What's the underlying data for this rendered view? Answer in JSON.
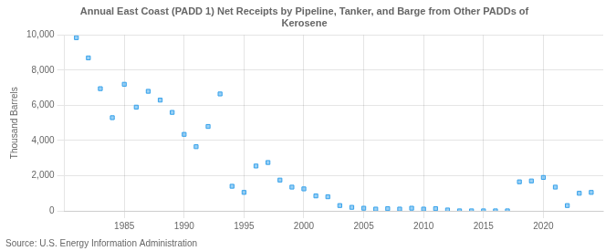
{
  "chart_data": {
    "type": "scatter",
    "title": "Annual East Coast (PADD 1) Net Receipts by Pipeline, Tanker, and Barge from Other PADDs of\nKerosene",
    "y_label": "Thousand Barrels",
    "annotations": [
      "Source: U.S. Energy Information Administration"
    ],
    "marker": "square",
    "x": [
      1981,
      1982,
      1983,
      1984,
      1985,
      1986,
      1987,
      1988,
      1989,
      1990,
      1991,
      1992,
      1993,
      1994,
      1995,
      1996,
      1997,
      1998,
      1999,
      2000,
      2001,
      2002,
      2003,
      2004,
      2005,
      2006,
      2007,
      2008,
      2009,
      2010,
      2011,
      2012,
      2013,
      2014,
      2015,
      2016,
      2017,
      2018,
      2019,
      2020,
      2021,
      2022,
      2023,
      2024
    ],
    "values": [
      9850,
      8700,
      6950,
      5300,
      7200,
      5900,
      6800,
      6300,
      5600,
      4350,
      3650,
      4800,
      6650,
      1400,
      1050,
      2550,
      2750,
      1750,
      1350,
      1250,
      850,
      800,
      300,
      200,
      150,
      100,
      125,
      100,
      150,
      100,
      125,
      50,
      0,
      0,
      0,
      0,
      0,
      1650,
      1700,
      1900,
      1350,
      300,
      1000,
      1050
    ],
    "xlim": [
      1980,
      2025
    ],
    "xticks": [
      1985,
      1990,
      1995,
      2000,
      2005,
      2010,
      2015,
      2020
    ],
    "ylim": [
      0,
      10000
    ],
    "yticks": [
      0,
      {
        "value": 2000,
        "label": "2,000"
      },
      {
        "value": 4000,
        "label": "4,000"
      },
      {
        "value": 6000,
        "label": "6,000"
      },
      {
        "value": 8000,
        "label": "8,000"
      },
      {
        "value": 10000,
        "label": "10,000"
      }
    ],
    "grid": true
  }
}
